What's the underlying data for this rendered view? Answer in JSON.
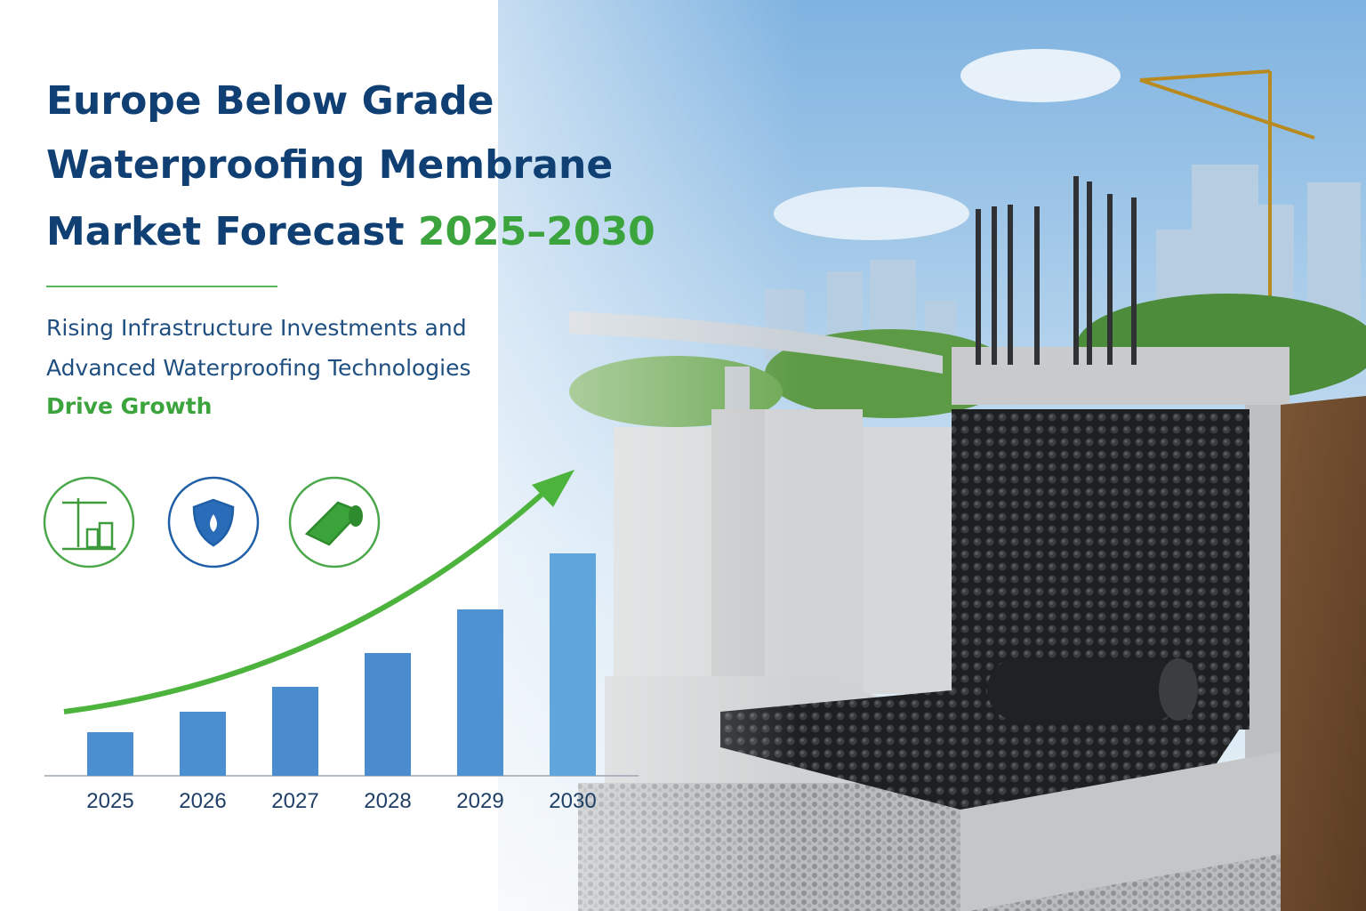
{
  "header": {
    "title": [
      "Europe Below Grade",
      "Waterproofing Membrane",
      "Market Forecast"
    ],
    "title_highlight": "2025–2030",
    "subtitle": [
      "Rising Infrastructure Investments and",
      "Advanced Waterproofing Technologies"
    ],
    "subtitle_highlight": "Drive Growth"
  },
  "chart_data": {
    "type": "bar",
    "categories": [
      "2025",
      "2026",
      "2027",
      "2028",
      "2029",
      "2030"
    ],
    "values": [
      49,
      72,
      100,
      138,
      187,
      250
    ],
    "ylim": [
      0,
      300
    ],
    "colors": [
      "#4b8fd1",
      "#4b8fd1",
      "#4a8ccd",
      "#4a8ccd",
      "#4e92d3",
      "#60a6dd"
    ]
  }
}
